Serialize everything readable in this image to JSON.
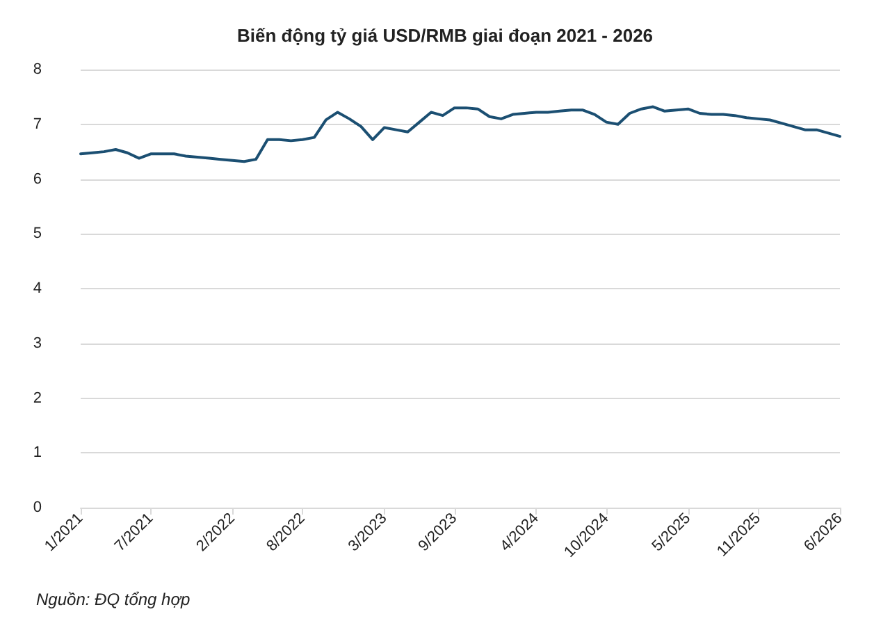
{
  "chart_data": {
    "type": "line",
    "title": "Biến động tỷ giá USD/RMB giai đoạn 2021 - 2026",
    "categories": [
      "1/2021",
      null,
      null,
      null,
      null,
      null,
      "7/2021",
      null,
      null,
      null,
      null,
      null,
      null,
      "2/2022",
      null,
      null,
      null,
      null,
      null,
      "8/2022",
      null,
      null,
      null,
      null,
      null,
      null,
      "3/2023",
      null,
      null,
      null,
      null,
      null,
      "9/2023",
      null,
      null,
      null,
      null,
      null,
      null,
      "4/2024",
      null,
      null,
      null,
      null,
      null,
      "10/2024",
      null,
      null,
      null,
      null,
      null,
      null,
      "5/2025",
      null,
      null,
      null,
      null,
      null,
      "11/2025",
      null,
      null,
      null,
      null,
      null,
      null,
      "6/2026"
    ],
    "series": [
      {
        "color": "#1b4f72",
        "values": [
          6.46,
          6.48,
          6.5,
          6.54,
          6.48,
          6.38,
          6.46,
          6.46,
          6.46,
          6.42,
          6.4,
          6.38,
          6.36,
          6.34,
          6.32,
          6.36,
          6.72,
          6.72,
          6.7,
          6.72,
          6.76,
          7.08,
          7.22,
          7.1,
          6.96,
          6.72,
          6.94,
          6.9,
          6.86,
          7.04,
          7.22,
          7.16,
          7.3,
          7.3,
          7.28,
          7.14,
          7.1,
          7.18,
          7.2,
          7.22,
          7.22,
          7.24,
          7.26,
          7.26,
          7.18,
          7.04,
          7.0,
          7.2,
          7.28,
          7.32,
          7.24,
          7.26,
          7.28,
          7.2,
          7.18,
          7.18,
          7.16,
          7.12,
          7.1,
          7.08,
          7.02,
          6.96,
          6.9,
          6.9,
          6.84,
          6.78
        ]
      }
    ],
    "ylim": [
      0,
      8
    ],
    "yticks": [
      0,
      1,
      2,
      3,
      4,
      5,
      6,
      7,
      8
    ],
    "grid": "y",
    "marker": "none",
    "line_style": "solid",
    "annotations": [
      "Nguồn: ĐQ tổng hợp"
    ]
  }
}
